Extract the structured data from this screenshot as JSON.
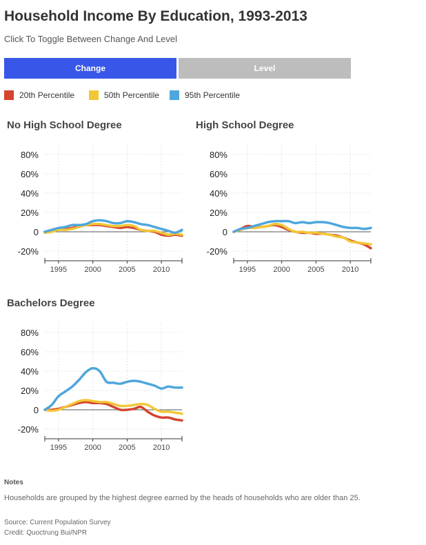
{
  "header": {
    "title": "Household Income By Education, 1993-2013",
    "subtitle": "Click To Toggle Between Change And Level"
  },
  "toggle": {
    "change_label": "Change",
    "level_label": "Level",
    "active_color": "#3857E8",
    "inactive_color": "#BDBDBD"
  },
  "legend": [
    {
      "label": "20th Percentile",
      "color": "#D5442F"
    },
    {
      "label": "50th Percentile",
      "color": "#F2C736"
    },
    {
      "label": "95th Percentile",
      "color": "#4EA6DC"
    }
  ],
  "chart_data": [
    {
      "type": "line",
      "title": "No High School Degree",
      "ylim": [
        -30,
        90
      ],
      "xlim": [
        1993,
        2013
      ],
      "y_ticks": [
        {
          "v": 80,
          "label": "80%"
        },
        {
          "v": 60,
          "label": "60%"
        },
        {
          "v": 40,
          "label": "40%"
        },
        {
          "v": 20,
          "label": "20%"
        },
        {
          "v": 0,
          "label": "0"
        },
        {
          "v": -20,
          "label": "-20%"
        }
      ],
      "x_ticks": [
        {
          "v": 1995,
          "label": "1995"
        },
        {
          "v": 2000,
          "label": "2000"
        },
        {
          "v": 2005,
          "label": "2005"
        },
        {
          "v": 2010,
          "label": "2010"
        }
      ],
      "grid": true,
      "x": [
        1993,
        1994,
        1995,
        1996,
        1997,
        1998,
        1999,
        2000,
        2001,
        2002,
        2003,
        2004,
        2005,
        2006,
        2007,
        2008,
        2009,
        2010,
        2011,
        2012,
        2013
      ],
      "series": [
        {
          "name": "20th Percentile",
          "color": "#D5442F",
          "values": [
            0,
            1,
            3,
            3,
            4,
            6,
            7,
            7,
            7,
            6,
            5,
            4,
            5,
            4,
            2,
            1,
            0,
            -3,
            -4,
            -3,
            -4
          ]
        },
        {
          "name": "50th Percentile",
          "color": "#F2C736",
          "values": [
            -1,
            0,
            2,
            2,
            3,
            5,
            7,
            8,
            8,
            7,
            6,
            6,
            7,
            6,
            2,
            1,
            1,
            -1,
            -3,
            -2,
            -3
          ]
        },
        {
          "name": "95th Percentile",
          "color": "#4EA6DC",
          "values": [
            0,
            2,
            4,
            5,
            7,
            7,
            8,
            11,
            12,
            11,
            9,
            9,
            11,
            10,
            8,
            7,
            5,
            3,
            1,
            -1,
            2
          ]
        }
      ]
    },
    {
      "type": "line",
      "title": "High School Degree",
      "ylim": [
        -30,
        90
      ],
      "xlim": [
        1993,
        2013
      ],
      "y_ticks": [
        {
          "v": 80,
          "label": "80%"
        },
        {
          "v": 60,
          "label": "60%"
        },
        {
          "v": 40,
          "label": "40%"
        },
        {
          "v": 20,
          "label": "20%"
        },
        {
          "v": 0,
          "label": "0"
        },
        {
          "v": -20,
          "label": "-20%"
        }
      ],
      "x_ticks": [
        {
          "v": 1995,
          "label": "1995"
        },
        {
          "v": 2000,
          "label": "2000"
        },
        {
          "v": 2005,
          "label": "2005"
        },
        {
          "v": 2010,
          "label": "2010"
        }
      ],
      "grid": true,
      "x": [
        1993,
        1994,
        1995,
        1996,
        1997,
        1998,
        1999,
        2000,
        2001,
        2002,
        2003,
        2004,
        2005,
        2006,
        2007,
        2008,
        2009,
        2010,
        2011,
        2012,
        2013
      ],
      "series": [
        {
          "name": "20th Percentile",
          "color": "#D5442F",
          "values": [
            0,
            3,
            6,
            5,
            5,
            6,
            7,
            5,
            2,
            0,
            -1,
            -1,
            -2,
            -2,
            -3,
            -4,
            -6,
            -9,
            -11,
            -13,
            -17
          ]
        },
        {
          "name": "50th Percentile",
          "color": "#F2C736",
          "values": [
            0,
            2,
            4,
            4,
            5,
            6,
            8,
            7,
            3,
            0,
            0,
            -1,
            -1,
            -2,
            -3,
            -5,
            -6,
            -10,
            -11,
            -12,
            -13
          ]
        },
        {
          "name": "95th Percentile",
          "color": "#4EA6DC",
          "values": [
            0,
            3,
            4,
            6,
            8,
            10,
            11,
            11,
            11,
            9,
            10,
            9,
            10,
            10,
            9,
            7,
            5,
            4,
            4,
            3,
            4
          ]
        }
      ]
    },
    {
      "type": "line",
      "title": "Bachelors Degree",
      "ylim": [
        -30,
        90
      ],
      "xlim": [
        1993,
        2013
      ],
      "y_ticks": [
        {
          "v": 80,
          "label": "80%"
        },
        {
          "v": 60,
          "label": "60%"
        },
        {
          "v": 40,
          "label": "40%"
        },
        {
          "v": 20,
          "label": "20%"
        },
        {
          "v": 0,
          "label": "0"
        },
        {
          "v": -20,
          "label": "-20%"
        }
      ],
      "x_ticks": [
        {
          "v": 1995,
          "label": "1995"
        },
        {
          "v": 2000,
          "label": "2000"
        },
        {
          "v": 2005,
          "label": "2005"
        },
        {
          "v": 2010,
          "label": "2010"
        }
      ],
      "grid": true,
      "x": [
        1993,
        1994,
        1995,
        1996,
        1997,
        1998,
        1999,
        2000,
        2001,
        2002,
        2003,
        2004,
        2005,
        2006,
        2007,
        2008,
        2009,
        2010,
        2011,
        2012,
        2013
      ],
      "series": [
        {
          "name": "20th Percentile",
          "color": "#D5442F",
          "values": [
            0,
            0,
            1,
            3,
            5,
            7,
            8,
            7,
            7,
            6,
            3,
            0,
            0,
            1,
            3,
            -2,
            -6,
            -8,
            -8,
            -10,
            -11
          ]
        },
        {
          "name": "50th Percentile",
          "color": "#F2C736",
          "values": [
            0,
            -1,
            0,
            3,
            6,
            9,
            10,
            9,
            8,
            8,
            6,
            4,
            4,
            5,
            6,
            5,
            1,
            -2,
            -2,
            -3,
            -4
          ]
        },
        {
          "name": "95th Percentile",
          "color": "#4EA6DC",
          "values": [
            0,
            5,
            14,
            19,
            24,
            31,
            39,
            43,
            40,
            29,
            28,
            27,
            29,
            30,
            29,
            27,
            25,
            22,
            24,
            23,
            23
          ]
        }
      ]
    }
  ],
  "notes": {
    "heading": "Notes",
    "text": "Households are grouped by the highest degree earned by the heads of households who are older than 25."
  },
  "source": "Source: Current Population Survey",
  "credit": "Credit: Quoctrung Bui/NPR"
}
